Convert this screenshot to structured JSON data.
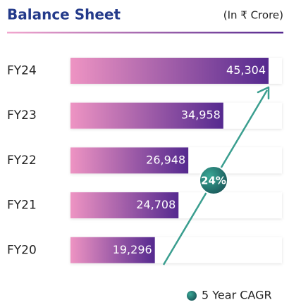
{
  "chart_data": {
    "type": "bar",
    "orientation": "horizontal",
    "title": "Balance Sheet",
    "subtitle": "(In ₹ Crore)",
    "categories": [
      "FY24",
      "FY23",
      "FY22",
      "FY21",
      "FY20"
    ],
    "values": [
      45304,
      34958,
      26948,
      24708,
      19296
    ],
    "value_labels": [
      "45,304",
      "34,958",
      "26,948",
      "24,708",
      "19,296"
    ],
    "color_start": "#ee94c3",
    "color_end": "#55298f",
    "annotation": "24%",
    "annotation_color": "#3a9e8f",
    "legend": "5 Year CAGR"
  }
}
